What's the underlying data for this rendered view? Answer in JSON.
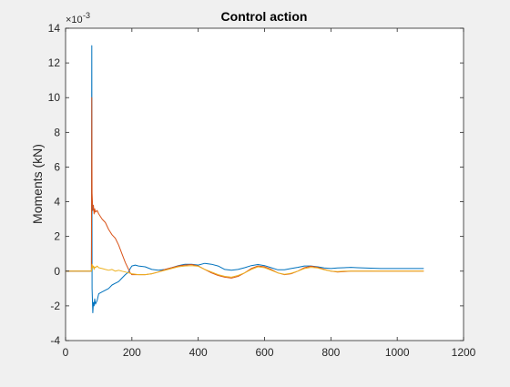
{
  "chart_data": {
    "type": "line",
    "title": "Control action",
    "xlabel": "",
    "ylabel": "Moments (kN)",
    "y_exponent_label": "×10",
    "y_exponent_power": "-3",
    "xlim": [
      0,
      1200
    ],
    "ylim": [
      -4,
      14
    ],
    "xticks": [
      0,
      200,
      400,
      600,
      800,
      1000,
      1200
    ],
    "yticks": [
      -4,
      -2,
      0,
      2,
      4,
      6,
      8,
      10,
      12,
      14
    ],
    "grid": false,
    "legend": "none",
    "series": [
      {
        "color": "#0072BD",
        "x": [
          0,
          78,
          79,
          80,
          82,
          84,
          86,
          88,
          90,
          95,
          100,
          110,
          120,
          130,
          140,
          150,
          160,
          170,
          180,
          190,
          195,
          200,
          210,
          220,
          240,
          260,
          280,
          300,
          320,
          340,
          360,
          380,
          400,
          420,
          440,
          460,
          480,
          500,
          520,
          540,
          560,
          580,
          600,
          620,
          640,
          660,
          680,
          700,
          720,
          740,
          760,
          780,
          800,
          820,
          840,
          860,
          880,
          900,
          950,
          1000,
          1050,
          1080
        ],
        "y": [
          0,
          0,
          13.0,
          -1.0,
          -2.4,
          -1.8,
          -2.0,
          -1.6,
          -1.9,
          -1.7,
          -1.3,
          -1.2,
          -1.1,
          -1.0,
          -0.8,
          -0.7,
          -0.6,
          -0.4,
          -0.2,
          -0.05,
          0.15,
          0.3,
          0.35,
          0.3,
          0.25,
          0.1,
          0.05,
          0.1,
          0.2,
          0.32,
          0.4,
          0.4,
          0.35,
          0.45,
          0.4,
          0.3,
          0.1,
          0.05,
          0.1,
          0.2,
          0.32,
          0.38,
          0.32,
          0.2,
          0.08,
          0.08,
          0.15,
          0.22,
          0.3,
          0.3,
          0.25,
          0.18,
          0.15,
          0.18,
          0.2,
          0.22,
          0.2,
          0.18,
          0.15,
          0.15,
          0.15,
          0.15
        ]
      },
      {
        "color": "#D95319",
        "x": [
          0,
          78,
          79,
          80,
          82,
          84,
          86,
          88,
          90,
          95,
          100,
          110,
          120,
          130,
          140,
          150,
          160,
          170,
          180,
          190,
          195,
          200,
          220,
          240,
          260,
          280,
          300,
          320,
          340,
          360,
          380,
          400,
          420,
          440,
          460,
          480,
          500,
          520,
          540,
          560,
          580,
          600,
          620,
          640,
          660,
          680,
          700,
          720,
          740,
          760,
          780,
          800,
          820,
          840,
          860,
          880,
          900,
          950,
          1000,
          1050,
          1080
        ],
        "y": [
          0,
          0,
          10.0,
          4.5,
          3.5,
          3.8,
          3.3,
          3.6,
          3.4,
          3.5,
          3.3,
          3.0,
          2.8,
          2.4,
          2.1,
          1.9,
          1.5,
          1.0,
          0.5,
          0.1,
          -0.1,
          -0.2,
          -0.2,
          -0.2,
          -0.15,
          -0.05,
          0.1,
          0.2,
          0.3,
          0.35,
          0.38,
          0.3,
          0.1,
          -0.1,
          -0.25,
          -0.35,
          -0.4,
          -0.3,
          -0.1,
          0.15,
          0.3,
          0.25,
          0.1,
          -0.1,
          -0.2,
          -0.15,
          0.0,
          0.2,
          0.28,
          0.22,
          0.1,
          0.0,
          -0.05,
          -0.02,
          0.0,
          0.0,
          0.0,
          0.0,
          0.0,
          0.0,
          0.0
        ]
      },
      {
        "color": "#EDB120",
        "x": [
          0,
          78,
          80,
          82,
          84,
          86,
          88,
          90,
          95,
          100,
          110,
          120,
          130,
          140,
          150,
          160,
          170,
          180,
          190,
          200,
          220,
          240,
          260,
          280,
          300,
          320,
          340,
          360,
          380,
          400,
          420,
          440,
          460,
          480,
          500,
          520,
          540,
          560,
          580,
          600,
          620,
          640,
          660,
          680,
          700,
          720,
          740,
          760,
          780,
          800,
          820,
          840,
          860,
          880,
          900,
          950,
          1000,
          1050,
          1080
        ],
        "y": [
          0,
          0,
          0.4,
          0.2,
          0.3,
          0.1,
          0.25,
          0.2,
          0.3,
          0.2,
          0.15,
          0.1,
          0.05,
          0.1,
          0.0,
          0.05,
          0.0,
          -0.05,
          -0.1,
          -0.15,
          -0.2,
          -0.2,
          -0.15,
          -0.05,
          0.05,
          0.15,
          0.25,
          0.3,
          0.32,
          0.28,
          0.1,
          -0.05,
          -0.2,
          -0.3,
          -0.35,
          -0.25,
          -0.1,
          0.1,
          0.25,
          0.2,
          0.05,
          -0.1,
          -0.18,
          -0.12,
          0.0,
          0.15,
          0.22,
          0.18,
          0.08,
          0.0,
          -0.03,
          0.0,
          0.0,
          0.0,
          0.0,
          0.0,
          0.0,
          0.0,
          0.0
        ]
      }
    ]
  }
}
